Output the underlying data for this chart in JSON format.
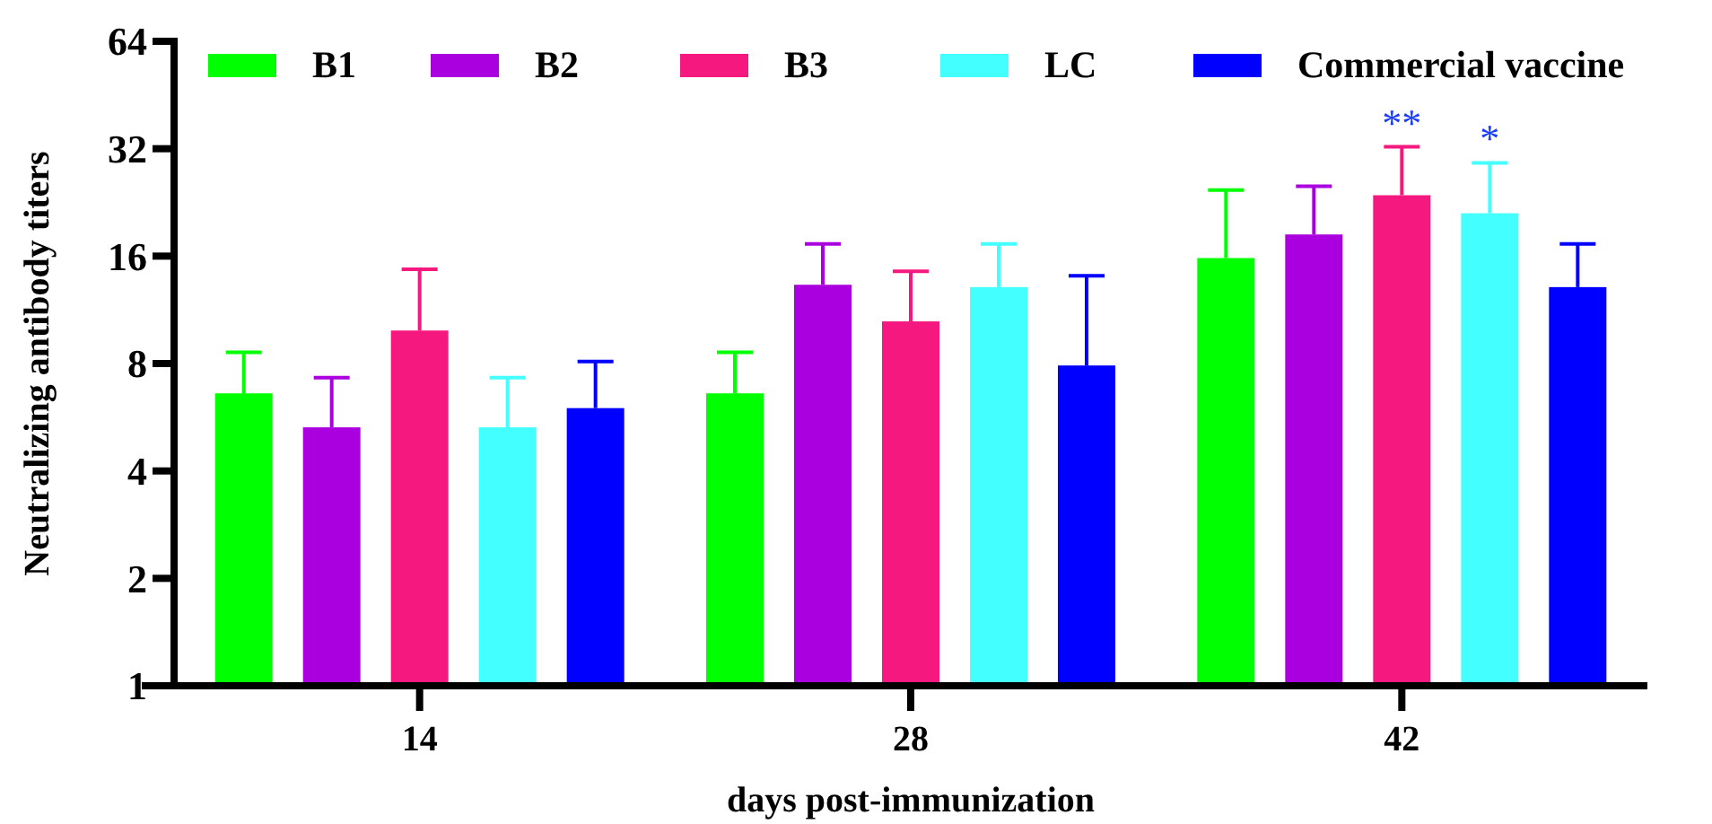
{
  "chart_data": {
    "type": "bar",
    "xlabel": "days post-immunization",
    "ylabel": "Neutralizing antibody titers",
    "categories": [
      "14",
      "28",
      "42"
    ],
    "series": [
      {
        "name": "B1",
        "color": "#00ff00",
        "values": [
          6.6,
          6.6,
          15.8
        ],
        "errors": [
          [
            6.6,
            8.6
          ],
          [
            6.6,
            8.6
          ],
          [
            15.8,
            24.5
          ]
        ]
      },
      {
        "name": "B2",
        "color": "#aa00e0",
        "values": [
          5.3,
          13.3,
          18.4
        ],
        "errors": [
          [
            5.3,
            7.3
          ],
          [
            13.3,
            17.3
          ],
          [
            18.4,
            25.1
          ]
        ]
      },
      {
        "name": "B3",
        "color": "#f5187f",
        "values": [
          9.9,
          10.5,
          23.7
        ],
        "errors": [
          [
            9.9,
            14.7
          ],
          [
            10.5,
            14.5
          ],
          [
            23.7,
            32.4
          ]
        ]
      },
      {
        "name": "LC",
        "color": "#44ffff",
        "values": [
          5.3,
          13.1,
          21.1
        ],
        "errors": [
          [
            5.3,
            7.3
          ],
          [
            13.1,
            17.3
          ],
          [
            21.1,
            29.2
          ]
        ]
      },
      {
        "name": "Commercial vaccine",
        "color": "#0000ff",
        "values": [
          6.0,
          7.9,
          13.1
        ],
        "errors": [
          [
            6.0,
            8.1
          ],
          [
            7.9,
            14.1
          ],
          [
            13.1,
            17.3
          ]
        ]
      }
    ],
    "annotations": [
      {
        "text": "**",
        "x": "42",
        "y": 32.4
      },
      {
        "text": "*",
        "x": "42",
        "y": 29.2
      }
    ],
    "log": true,
    "ylim": [
      1,
      64
    ],
    "yticks": [
      1,
      2,
      4,
      8,
      16,
      32,
      64
    ],
    "grid": false,
    "legend": "top"
  }
}
